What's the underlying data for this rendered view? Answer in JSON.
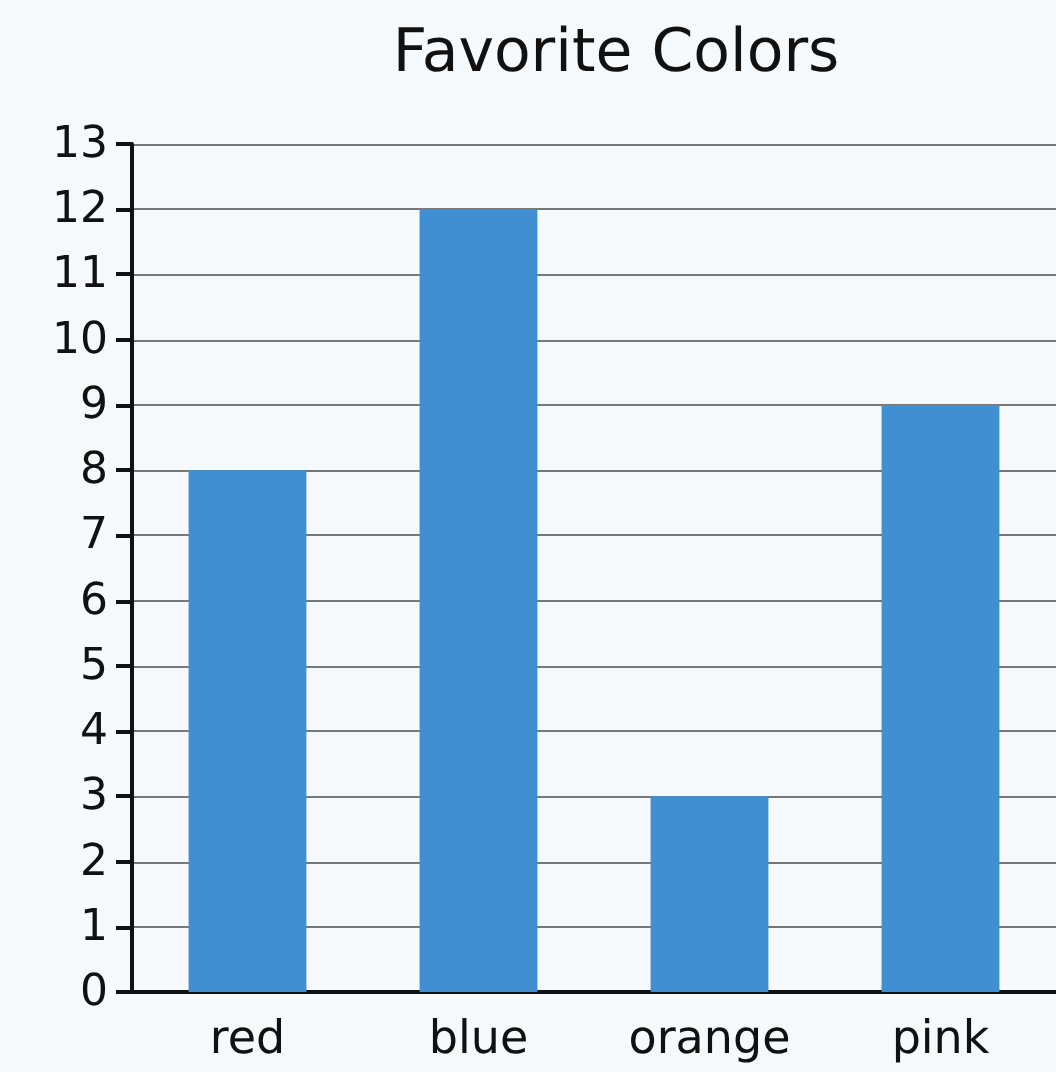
{
  "chart_data": {
    "type": "bar",
    "title": "Favorite Colors",
    "categories": [
      "red",
      "blue",
      "orange",
      "pink"
    ],
    "values": [
      8,
      12,
      3,
      9
    ],
    "color": "#3f8fd2",
    "ylim": [
      0,
      13
    ],
    "yticks": [
      0,
      1,
      2,
      3,
      4,
      5,
      6,
      7,
      8,
      9,
      10,
      11,
      12,
      13
    ],
    "grid": "y"
  }
}
